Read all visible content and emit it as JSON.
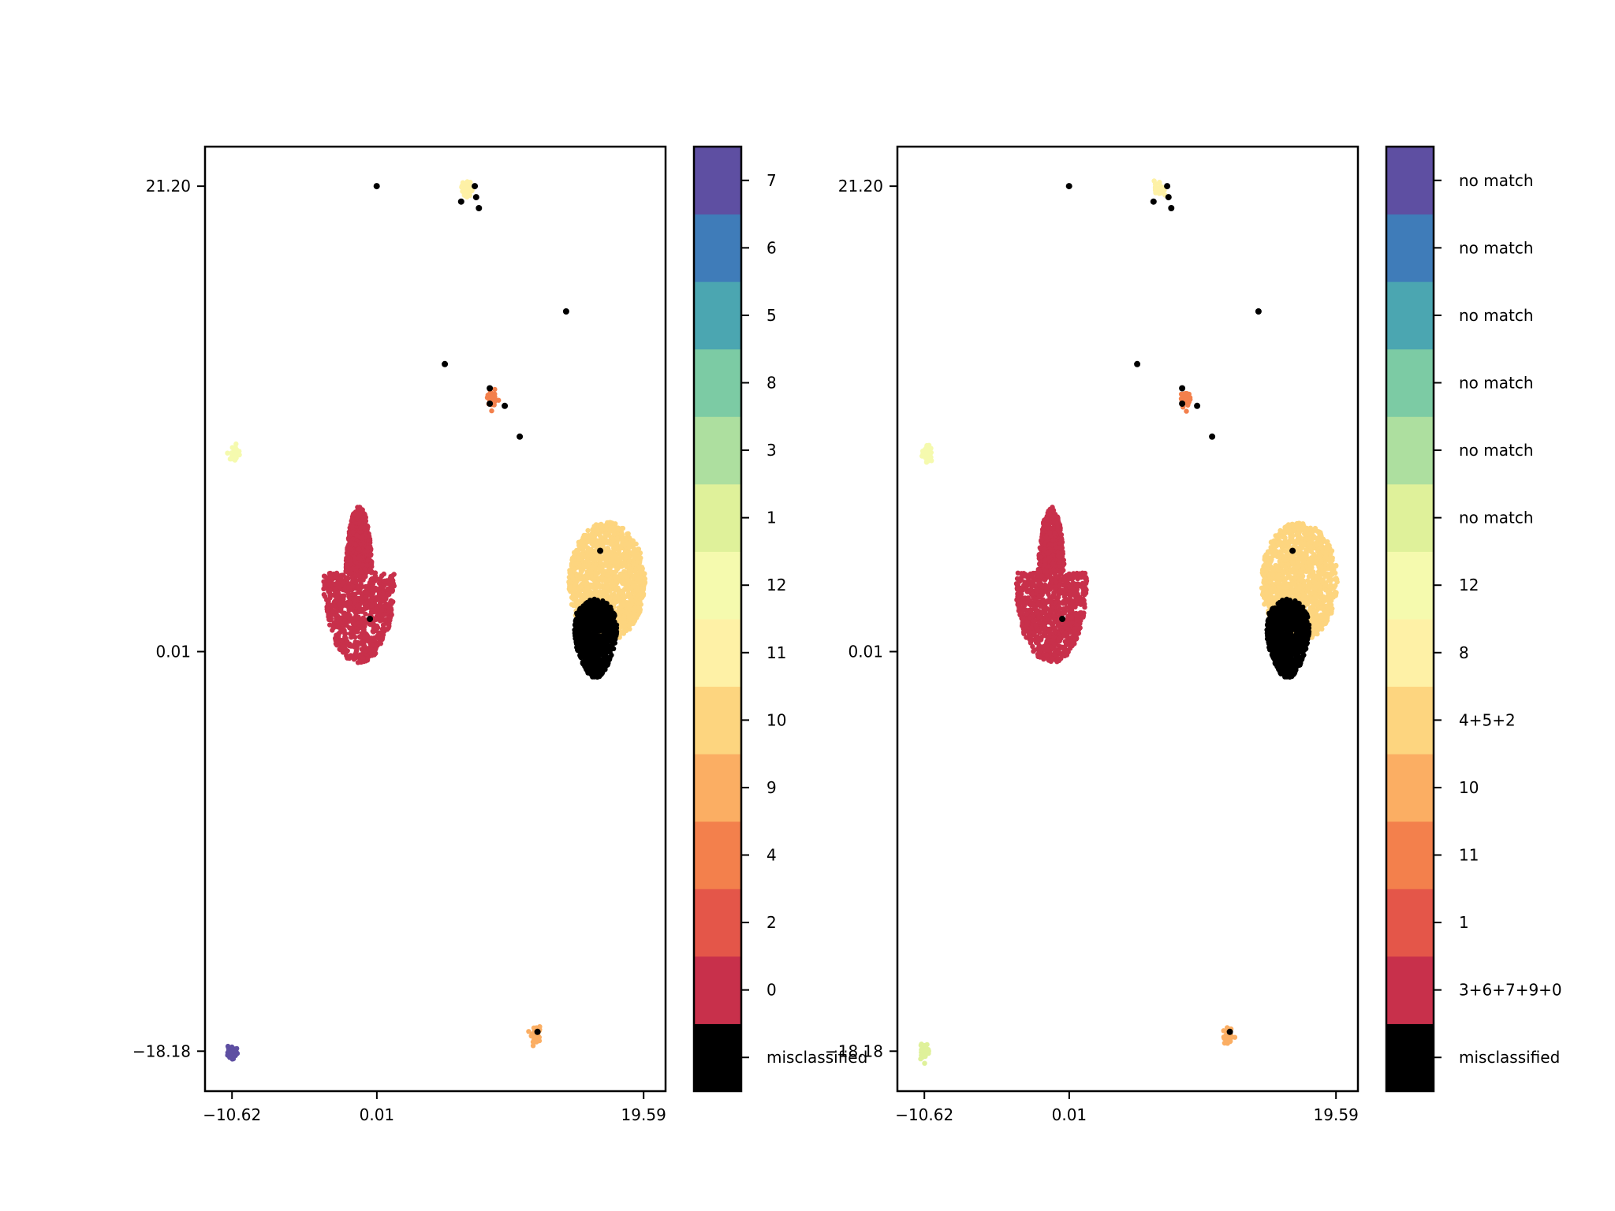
{
  "chart_data": [
    {
      "type": "scatter",
      "title": "",
      "xlabel": "",
      "ylabel": "",
      "xlim": [
        -12.6,
        21.2
      ],
      "ylim": [
        -20.0,
        23.0
      ],
      "xticks": [
        -10.62,
        0.01,
        19.59
      ],
      "xtick_labels": [
        "−10.62",
        "0.01",
        "19.59"
      ],
      "yticks": [
        21.2,
        0.01,
        -18.18
      ],
      "ytick_labels": [
        "21.20",
        "0.01",
        "−18.18"
      ],
      "grid": false,
      "colorbar": {
        "levels": [
          "misclassified",
          "0",
          "2",
          "4",
          "9",
          "10",
          "11",
          "12",
          "1",
          "3",
          "8",
          "5",
          "6",
          "7"
        ],
        "colors": [
          "#000000",
          "#c8304b",
          "#e45649",
          "#f3804c",
          "#fbae63",
          "#fdd57f",
          "#fef1a6",
          "#f5faae",
          "#dff19a",
          "#addf9f",
          "#7ccba4",
          "#4ba6b1",
          "#3f7cb9",
          "#5e4fa2"
        ]
      },
      "clusters": [
        {
          "label": "0",
          "x": 0.0,
          "y": 1.5,
          "approx_extent_x": [
            -3.9,
            1.3
          ],
          "approx_extent_y": [
            -0.5,
            6.6
          ]
        },
        {
          "label": "10",
          "x": 16.5,
          "y": 2.2,
          "approx_extent_x": [
            14.1,
            19.7
          ],
          "approx_extent_y": [
            0.5,
            5.9
          ]
        },
        {
          "label": "misclassified",
          "x": 16.5,
          "y": 1.0,
          "approx_extent_x": [
            14.1,
            18.0
          ],
          "approx_extent_y": [
            -1.2,
            2.4
          ]
        },
        {
          "label": "11",
          "x": 6.6,
          "y": 21.1
        },
        {
          "label": "12",
          "x": -10.4,
          "y": 9.0
        },
        {
          "label": "7",
          "x": -10.62,
          "y": -18.18
        },
        {
          "label": "9",
          "x": 11.7,
          "y": -17.5
        },
        {
          "label": "4",
          "x": 8.5,
          "y": 11.5
        }
      ],
      "isolated_misclassified_points": [
        [
          0.0,
          21.2
        ],
        [
          7.2,
          21.2
        ],
        [
          7.3,
          20.7
        ],
        [
          6.2,
          20.5
        ],
        [
          7.5,
          20.2
        ],
        [
          13.9,
          15.5
        ],
        [
          5.0,
          13.1
        ],
        [
          8.3,
          12.0
        ],
        [
          8.3,
          11.3
        ],
        [
          9.4,
          11.2
        ],
        [
          10.5,
          9.8
        ],
        [
          16.4,
          4.6
        ],
        [
          11.8,
          -17.3
        ],
        [
          -0.5,
          1.5
        ]
      ]
    },
    {
      "type": "scatter",
      "title": "",
      "xlabel": "",
      "ylabel": "",
      "xlim": [
        -12.6,
        21.2
      ],
      "ylim": [
        -20.0,
        23.0
      ],
      "xticks": [
        -10.62,
        0.01,
        19.59
      ],
      "xtick_labels": [
        "−10.62",
        "0.01",
        "19.59"
      ],
      "yticks": [
        21.2,
        0.01,
        -18.18
      ],
      "ytick_labels": [
        "21.20",
        "0.01",
        "−18.18"
      ],
      "grid": false,
      "colorbar": {
        "levels": [
          "misclassified",
          "3+6+7+9+0",
          "1",
          "11",
          "10",
          "4+5+2",
          "8",
          "12",
          "no match",
          "no match",
          "no match",
          "no match",
          "no match",
          "no match"
        ],
        "colors": [
          "#000000",
          "#c8304b",
          "#e45649",
          "#f3804c",
          "#fbae63",
          "#fdd57f",
          "#fef1a6",
          "#f5faae",
          "#dff19a",
          "#addf9f",
          "#7ccba4",
          "#4ba6b1",
          "#3f7cb9",
          "#5e4fa2"
        ]
      },
      "clusters": [
        {
          "label": "3+6+7+9+0",
          "x": 0.0,
          "y": 1.5,
          "approx_extent_x": [
            -3.9,
            1.3
          ],
          "approx_extent_y": [
            -0.5,
            6.6
          ]
        },
        {
          "label": "4+5+2",
          "x": 16.5,
          "y": 2.2,
          "approx_extent_x": [
            14.1,
            19.7
          ],
          "approx_extent_y": [
            0.5,
            5.9
          ]
        },
        {
          "label": "misclassified",
          "x": 16.5,
          "y": 1.0,
          "approx_extent_x": [
            14.1,
            18.0
          ],
          "approx_extent_y": [
            -1.2,
            2.4
          ]
        },
        {
          "label": "8",
          "x": 6.6,
          "y": 21.1
        },
        {
          "label": "12",
          "x": -10.4,
          "y": 9.0
        },
        {
          "label": "no match",
          "x": -10.62,
          "y": -18.18
        },
        {
          "label": "10",
          "x": 11.7,
          "y": -17.5
        },
        {
          "label": "11",
          "x": 8.5,
          "y": 11.5
        }
      ],
      "isolated_misclassified_points": [
        [
          0.0,
          21.2
        ],
        [
          7.2,
          21.2
        ],
        [
          7.3,
          20.7
        ],
        [
          6.2,
          20.5
        ],
        [
          7.5,
          20.2
        ],
        [
          13.9,
          15.5
        ],
        [
          5.0,
          13.1
        ],
        [
          8.3,
          12.0
        ],
        [
          8.3,
          11.3
        ],
        [
          9.4,
          11.2
        ],
        [
          10.5,
          9.8
        ],
        [
          16.4,
          4.6
        ],
        [
          11.8,
          -17.3
        ],
        [
          -0.5,
          1.5
        ]
      ]
    }
  ]
}
